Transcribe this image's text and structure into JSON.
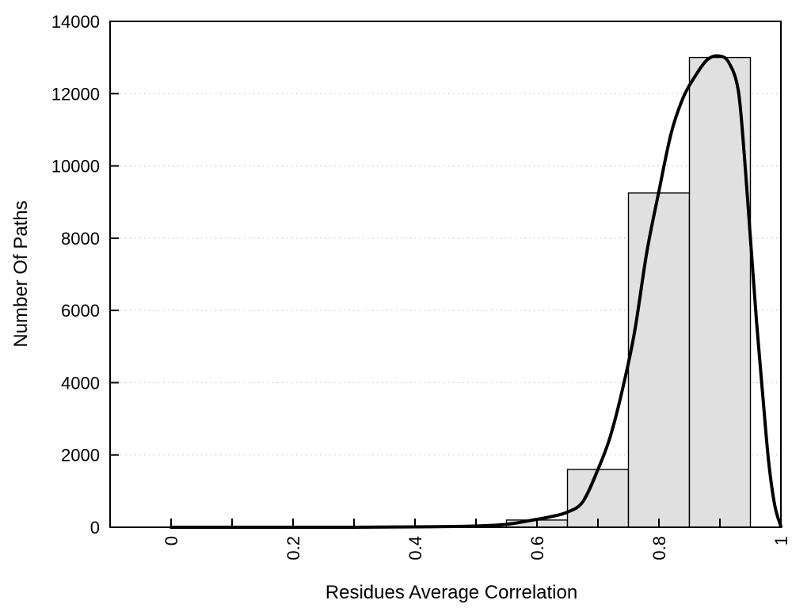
{
  "chart_data": {
    "type": "bar",
    "subtype": "histogram-with-density-curve",
    "title": "",
    "xlabel": "Residues Average Correlation",
    "ylabel": "Number Of Paths",
    "xlim": [
      -0.1,
      1.0
    ],
    "ylim": [
      0,
      14000
    ],
    "x_ticks": {
      "minor_values": [
        0,
        0.1,
        0.2,
        0.3,
        0.4,
        0.5,
        0.6,
        0.7,
        0.8,
        0.9,
        1.0
      ],
      "major_values": [
        0,
        0.2,
        0.4,
        0.6,
        0.8,
        1.0
      ],
      "major_labels": [
        "0",
        "0.2",
        "0.4",
        "0.6",
        "0.8",
        "1"
      ],
      "label_rotation_deg": -90
    },
    "y_ticks": {
      "values": [
        0,
        2000,
        4000,
        6000,
        8000,
        10000,
        12000,
        14000
      ],
      "labels": [
        "0",
        "2000",
        "4000",
        "6000",
        "8000",
        "10000",
        "12000",
        "14000"
      ]
    },
    "grid": {
      "horizontal": true,
      "vertical": false,
      "style": "dotted",
      "values": [
        2000,
        4000,
        6000,
        8000,
        10000,
        12000
      ]
    },
    "legend": "none",
    "histogram": {
      "bin_width": 0.1,
      "bins": [
        {
          "x0": 0.55,
          "x1": 0.65,
          "count": 200
        },
        {
          "x0": 0.65,
          "x1": 0.75,
          "count": 1600
        },
        {
          "x0": 0.75,
          "x1": 0.85,
          "count": 9250
        },
        {
          "x0": 0.85,
          "x1": 0.95,
          "count": 13000
        }
      ]
    },
    "curve": {
      "name": "density-curve",
      "peak": {
        "x": 0.9,
        "y": 13040
      },
      "points": [
        [
          0,
          0
        ],
        [
          0.05,
          0
        ],
        [
          0.1,
          0
        ],
        [
          0.15,
          0
        ],
        [
          0.2,
          0
        ],
        [
          0.25,
          0
        ],
        [
          0.3,
          0
        ],
        [
          0.35,
          5
        ],
        [
          0.4,
          10
        ],
        [
          0.45,
          20
        ],
        [
          0.5,
          35
        ],
        [
          0.55,
          80
        ],
        [
          0.6,
          220
        ],
        [
          0.625,
          300
        ],
        [
          0.65,
          420
        ],
        [
          0.675,
          700
        ],
        [
          0.7,
          1600
        ],
        [
          0.72,
          2500
        ],
        [
          0.74,
          3800
        ],
        [
          0.76,
          5400
        ],
        [
          0.78,
          7600
        ],
        [
          0.8,
          9300
        ],
        [
          0.82,
          10900
        ],
        [
          0.84,
          11900
        ],
        [
          0.86,
          12500
        ],
        [
          0.88,
          12950
        ],
        [
          0.9,
          13040
        ],
        [
          0.915,
          12850
        ],
        [
          0.93,
          12100
        ],
        [
          0.94,
          10300
        ],
        [
          0.95,
          8000
        ],
        [
          0.96,
          5700
        ],
        [
          0.97,
          3700
        ],
        [
          0.98,
          1800
        ],
        [
          0.99,
          600
        ],
        [
          1.0,
          20
        ]
      ]
    },
    "colors": {
      "background": "#ffffff",
      "bar_fill": "#e0e0e0",
      "bar_border": "#000000",
      "curve": "#000000",
      "grid": "#c4c4c4",
      "frame": "#000000",
      "text": "#000000"
    }
  }
}
